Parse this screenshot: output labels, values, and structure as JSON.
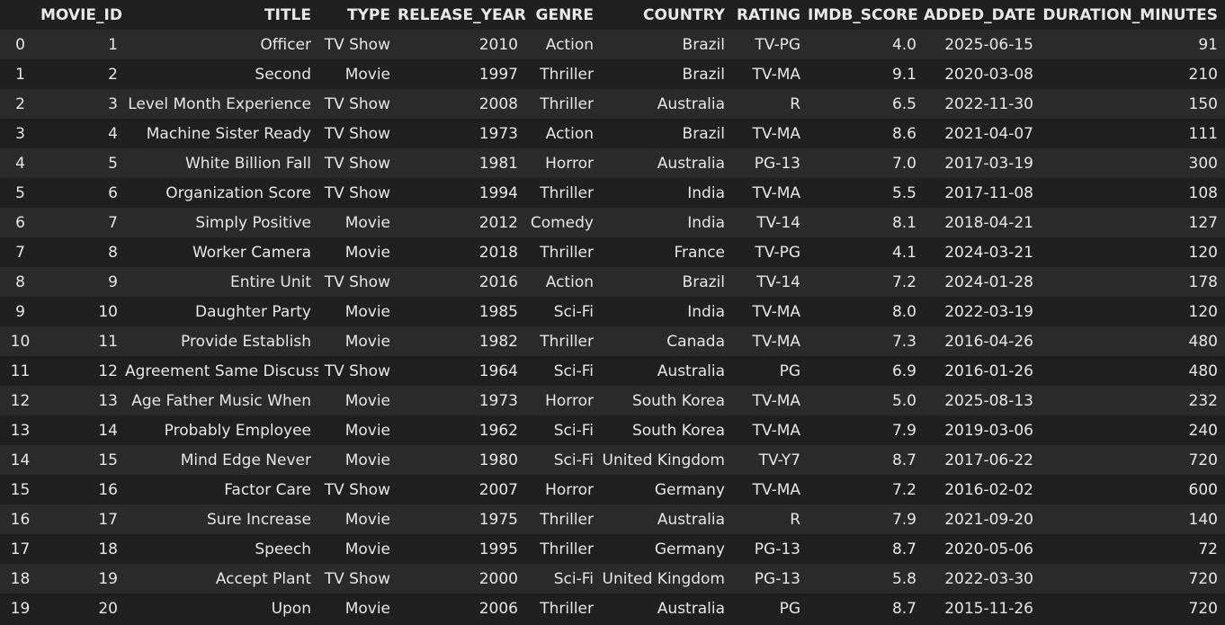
{
  "table": {
    "index_header": "",
    "columns": [
      "MOVIE_ID",
      "TITLE",
      "TYPE",
      "RELEASE_YEAR",
      "GENRE",
      "COUNTRY",
      "RATING",
      "IMDB_SCORE",
      "ADDED_DATE",
      "DURATION_MINUTES"
    ],
    "rows": [
      {
        "index": "0",
        "cells": [
          "1",
          "Officer",
          "TV Show",
          "2010",
          "Action",
          "Brazil",
          "TV-PG",
          "4.0",
          "2025-06-15",
          "91"
        ]
      },
      {
        "index": "1",
        "cells": [
          "2",
          "Second",
          "Movie",
          "1997",
          "Thriller",
          "Brazil",
          "TV-MA",
          "9.1",
          "2020-03-08",
          "210"
        ]
      },
      {
        "index": "2",
        "cells": [
          "3",
          "Level Month Experience",
          "TV Show",
          "2008",
          "Thriller",
          "Australia",
          "R",
          "6.5",
          "2022-11-30",
          "150"
        ]
      },
      {
        "index": "3",
        "cells": [
          "4",
          "Machine Sister Ready",
          "TV Show",
          "1973",
          "Action",
          "Brazil",
          "TV-MA",
          "8.6",
          "2021-04-07",
          "111"
        ]
      },
      {
        "index": "4",
        "cells": [
          "5",
          "White Billion Fall",
          "TV Show",
          "1981",
          "Horror",
          "Australia",
          "PG-13",
          "7.0",
          "2017-03-19",
          "300"
        ]
      },
      {
        "index": "5",
        "cells": [
          "6",
          "Organization Score",
          "TV Show",
          "1994",
          "Thriller",
          "India",
          "TV-MA",
          "5.5",
          "2017-11-08",
          "108"
        ]
      },
      {
        "index": "6",
        "cells": [
          "7",
          "Simply Positive",
          "Movie",
          "2012",
          "Comedy",
          "India",
          "TV-14",
          "8.1",
          "2018-04-21",
          "127"
        ]
      },
      {
        "index": "7",
        "cells": [
          "8",
          "Worker Camera",
          "Movie",
          "2018",
          "Thriller",
          "France",
          "TV-PG",
          "4.1",
          "2024-03-21",
          "120"
        ]
      },
      {
        "index": "8",
        "cells": [
          "9",
          "Entire Unit",
          "TV Show",
          "2016",
          "Action",
          "Brazil",
          "TV-14",
          "7.2",
          "2024-01-28",
          "178"
        ]
      },
      {
        "index": "9",
        "cells": [
          "10",
          "Daughter Party",
          "Movie",
          "1985",
          "Sci-Fi",
          "India",
          "TV-MA",
          "8.0",
          "2022-03-19",
          "120"
        ]
      },
      {
        "index": "10",
        "cells": [
          "11",
          "Provide Establish",
          "Movie",
          "1982",
          "Thriller",
          "Canada",
          "TV-MA",
          "7.3",
          "2016-04-26",
          "480"
        ]
      },
      {
        "index": "11",
        "cells": [
          "12",
          "Agreement Same Discuss",
          "TV Show",
          "1964",
          "Sci-Fi",
          "Australia",
          "PG",
          "6.9",
          "2016-01-26",
          "480"
        ]
      },
      {
        "index": "12",
        "cells": [
          "13",
          "Age Father Music When",
          "Movie",
          "1973",
          "Horror",
          "South Korea",
          "TV-MA",
          "5.0",
          "2025-08-13",
          "232"
        ]
      },
      {
        "index": "13",
        "cells": [
          "14",
          "Probably Employee",
          "Movie",
          "1962",
          "Sci-Fi",
          "South Korea",
          "TV-MA",
          "7.9",
          "2019-03-06",
          "240"
        ]
      },
      {
        "index": "14",
        "cells": [
          "15",
          "Mind Edge Never",
          "Movie",
          "1980",
          "Sci-Fi",
          "United Kingdom",
          "TV-Y7",
          "8.7",
          "2017-06-22",
          "720"
        ]
      },
      {
        "index": "15",
        "cells": [
          "16",
          "Factor Care",
          "TV Show",
          "2007",
          "Horror",
          "Germany",
          "TV-MA",
          "7.2",
          "2016-02-02",
          "600"
        ]
      },
      {
        "index": "16",
        "cells": [
          "17",
          "Sure Increase",
          "Movie",
          "1975",
          "Thriller",
          "Australia",
          "R",
          "7.9",
          "2021-09-20",
          "140"
        ]
      },
      {
        "index": "17",
        "cells": [
          "18",
          "Speech",
          "Movie",
          "1995",
          "Thriller",
          "Germany",
          "PG-13",
          "8.7",
          "2020-05-06",
          "72"
        ]
      },
      {
        "index": "18",
        "cells": [
          "19",
          "Accept Plant",
          "TV Show",
          "2000",
          "Sci-Fi",
          "United Kingdom",
          "PG-13",
          "5.8",
          "2022-03-30",
          "720"
        ]
      },
      {
        "index": "19",
        "cells": [
          "20",
          "Upon",
          "Movie",
          "2006",
          "Thriller",
          "Australia",
          "PG",
          "8.7",
          "2015-11-26",
          "720"
        ]
      }
    ]
  }
}
